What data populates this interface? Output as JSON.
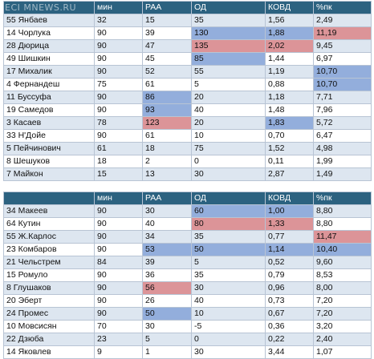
{
  "watermark": "ECI MNEWS.RU",
  "tables": [
    {
      "headers": [
        "",
        "мин",
        "РАА",
        "ОД",
        "КОВД",
        "%пк"
      ],
      "rows": [
        {
          "cells": [
            "55 Янбаев",
            "32",
            "15",
            "35",
            "1,56",
            "2,49"
          ],
          "hl": [
            "",
            "",
            "",
            "",
            "",
            ""
          ]
        },
        {
          "cells": [
            "14 Чорлука",
            "90",
            "39",
            "130",
            "1,88",
            "11,19"
          ],
          "hl": [
            "",
            "",
            "",
            "blue",
            "blue",
            "red"
          ]
        },
        {
          "cells": [
            "28 Дюрица",
            "90",
            "47",
            "135",
            "2,02",
            "9,45"
          ],
          "hl": [
            "",
            "",
            "",
            "red",
            "red",
            ""
          ]
        },
        {
          "cells": [
            "49 Шишкин",
            "90",
            "45",
            "85",
            "1,44",
            "6,97"
          ],
          "hl": [
            "",
            "",
            "",
            "blue",
            "",
            ""
          ]
        },
        {
          "cells": [
            "17 Михалик",
            "90",
            "52",
            "55",
            "1,19",
            "10,70"
          ],
          "hl": [
            "",
            "",
            "",
            "",
            "",
            "blue"
          ]
        },
        {
          "cells": [
            "4 Фернандеш",
            "75",
            "61",
            "5",
            "0,88",
            "10,70"
          ],
          "hl": [
            "",
            "",
            "",
            "",
            "",
            "blue"
          ]
        },
        {
          "cells": [
            "11 Буссуфа",
            "90",
            "86",
            "20",
            "1,18",
            "7,71"
          ],
          "hl": [
            "",
            "",
            "blue",
            "",
            "",
            ""
          ]
        },
        {
          "cells": [
            "19 Самедов",
            "90",
            "93",
            "40",
            "1,48",
            "7,96"
          ],
          "hl": [
            "",
            "",
            "blue",
            "",
            "",
            ""
          ]
        },
        {
          "cells": [
            "3 Касаев",
            "78",
            "123",
            "20",
            "1,83",
            "5,72"
          ],
          "hl": [
            "",
            "",
            "red",
            "",
            "blue",
            ""
          ]
        },
        {
          "cells": [
            "33 Н'Дойе",
            "90",
            "61",
            "10",
            "0,70",
            "6,47"
          ],
          "hl": [
            "",
            "",
            "",
            "",
            "",
            ""
          ]
        },
        {
          "cells": [
            "5 Пейчинович",
            "61",
            "18",
            "75",
            "1,52",
            "4,98"
          ],
          "hl": [
            "",
            "",
            "",
            "",
            "",
            ""
          ]
        },
        {
          "cells": [
            "8 Шешуков",
            "18",
            "2",
            "0",
            "0,11",
            "1,99"
          ],
          "hl": [
            "",
            "",
            "",
            "",
            "",
            ""
          ]
        },
        {
          "cells": [
            "7 Майкон",
            "15",
            "13",
            "30",
            "2,87",
            "1,49"
          ],
          "hl": [
            "",
            "",
            "",
            "",
            "",
            ""
          ]
        }
      ]
    },
    {
      "headers": [
        "",
        "мин",
        "РАА",
        "ОД",
        "КОВД",
        "%пк"
      ],
      "rows": [
        {
          "cells": [
            "34 Макеев",
            "90",
            "30",
            "60",
            "1,00",
            "8,80"
          ],
          "hl": [
            "",
            "",
            "",
            "blue",
            "blue",
            ""
          ]
        },
        {
          "cells": [
            "64 Кутин",
            "90",
            "40",
            "80",
            "1,33",
            "8,80"
          ],
          "hl": [
            "",
            "",
            "",
            "red",
            "red",
            ""
          ]
        },
        {
          "cells": [
            "55 Ж.Карлос",
            "90",
            "34",
            "35",
            "0,77",
            "11,47"
          ],
          "hl": [
            "",
            "",
            "",
            "",
            "",
            "red"
          ]
        },
        {
          "cells": [
            "23 Комбаров",
            "90",
            "53",
            "50",
            "1,14",
            "10,40"
          ],
          "hl": [
            "",
            "",
            "blue",
            "blue",
            "blue",
            "blue"
          ]
        },
        {
          "cells": [
            "21 Чельстрем",
            "84",
            "39",
            "5",
            "0,52",
            "9,60"
          ],
          "hl": [
            "",
            "",
            "",
            "",
            "",
            ""
          ]
        },
        {
          "cells": [
            "15 Ромуло",
            "90",
            "36",
            "35",
            "0,79",
            "8,53"
          ],
          "hl": [
            "",
            "",
            "",
            "",
            "",
            ""
          ]
        },
        {
          "cells": [
            "8 Глушаков",
            "90",
            "56",
            "30",
            "0,96",
            "8,00"
          ],
          "hl": [
            "",
            "",
            "red",
            "",
            "",
            ""
          ]
        },
        {
          "cells": [
            "20 Эберт",
            "90",
            "26",
            "40",
            "0,73",
            "7,20"
          ],
          "hl": [
            "",
            "",
            "",
            "",
            "",
            ""
          ]
        },
        {
          "cells": [
            "24 Промес",
            "90",
            "50",
            "10",
            "0,67",
            "7,20"
          ],
          "hl": [
            "",
            "",
            "blue",
            "",
            "",
            ""
          ]
        },
        {
          "cells": [
            "10 Мовсисян",
            "70",
            "30",
            "-5",
            "0,36",
            "3,20"
          ],
          "hl": [
            "",
            "",
            "",
            "",
            "",
            ""
          ]
        },
        {
          "cells": [
            "22 Дзюба",
            "23",
            "5",
            "0",
            "0,22",
            "2,40"
          ],
          "hl": [
            "",
            "",
            "",
            "",
            "",
            ""
          ]
        },
        {
          "cells": [
            "14 Яковлев",
            "9",
            "1",
            "30",
            "3,44",
            "1,07"
          ],
          "hl": [
            "",
            "",
            "",
            "",
            "",
            ""
          ]
        }
      ]
    }
  ],
  "colors": {
    "header_bg": "#2c6280",
    "row_alt_bg": "#dde6f0",
    "highlight_blue": "#93aedc",
    "highlight_red": "#dc9498"
  }
}
